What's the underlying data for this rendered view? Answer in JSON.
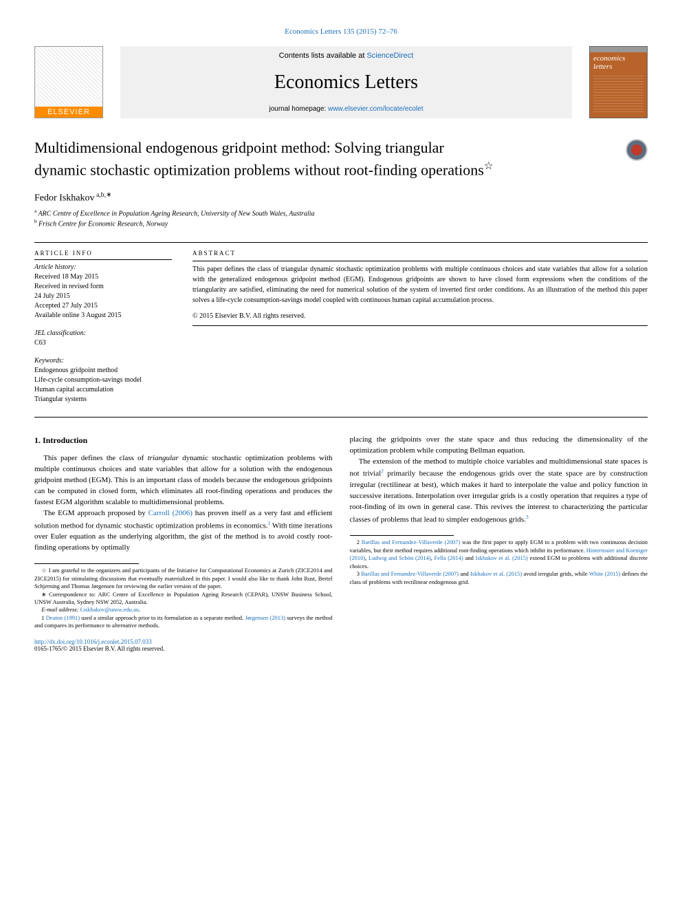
{
  "citation": "Economics Letters 135 (2015) 72–76",
  "banner": {
    "contents_prefix": "Contents lists available at ",
    "contents_link": "ScienceDirect",
    "journal_name": "Economics Letters",
    "homepage_prefix": "journal homepage: ",
    "homepage_link": "www.elsevier.com/locate/ecolet",
    "elsevier_text": "ELSEVIER",
    "cover_title": "economics letters"
  },
  "title": {
    "main": "Multidimensional endogenous gridpoint method: Solving triangular",
    "sub_prefix": "dynamic stochastic optimization problems without root-finding operations",
    "sup": "☆"
  },
  "authors": "Fedor Iskhakov",
  "affiliations": {
    "a": "ARC Centre of Excellence in Population Ageing Research, University of New South Wales, Australia",
    "b": "Frisch Centre for Economic Research, Norway"
  },
  "article_info": {
    "heading": "ARTICLE INFO",
    "history_label": "Article history:",
    "received": "Received 18 May 2015",
    "received_revised": "Received in revised form",
    "revised_date": "24 July 2015",
    "accepted": "Accepted 27 July 2015",
    "available": "Available online 3 August 2015",
    "jel_label": "JEL classification:",
    "jel_codes": "C63",
    "keywords_label": "Keywords:",
    "kw1": "Endogenous gridpoint method",
    "kw2": "Life-cycle consumption-savings model",
    "kw3": "Human capital accumulation",
    "kw4": "Triangular systems"
  },
  "abstract": {
    "heading": "ABSTRACT",
    "text": "This paper defines the class of triangular dynamic stochastic optimization problems with multiple continuous choices and state variables that allow for a solution with the generalized endogenous gridpoint method (EGM). Endogenous gridpoints are shown to have closed form expressions when the conditions of the triangularity are satisfied, eliminating the need for numerical solution of the system of inverted first order conditions. As an illustration of the method this paper solves a life-cycle consumption-savings model coupled with continuous human capital accumulation process.",
    "copyright": "© 2015 Elsevier B.V. All rights reserved."
  },
  "body": {
    "section_heading": "1. Introduction",
    "left": {
      "p1_a": "This paper defines the class of ",
      "p1_i": "triangular",
      "p1_b": " dynamic stochastic optimization problems with multiple continuous choices and state variables that allow for a solution with the endogenous gridpoint method (EGM). This is an important class of models because the endogenous gridpoints can be computed in closed form, which eliminates all root-finding operations and produces the fastest EGM algorithm scalable to multidimensional problems.",
      "p2_a": "The EGM approach proposed by ",
      "p2_ref1": "Carroll (2006)",
      "p2_b": " has proven itself as a very fast and efficient solution method for dynamic stochastic optimization problems in economics.",
      "p2_fn1": "1",
      "p2_c": " With time iterations over Euler equation as the underlying algorithm, the gist of the method is to avoid costly root-finding operations by optimally"
    },
    "right": {
      "p1": "placing the gridpoints over the state space and thus reducing the dimensionality of the optimization problem while computing Bellman equation.",
      "p2_a": "The extension of the method to multiple choice variables and multidimensional state spaces is not trivial",
      "p2_fn2": "2",
      "p2_b": " primarily because the endogenous grids over the state space are by construction irregular (rectilinear at best), which makes it hard to interpolate the value and policy function in successive iterations. Interpolation over irregular grids is a costly operation that requires a type of root-finding of its own in general case. This revives the interest to characterizing the particular classes of problems that lead to simpler endogenous grids.",
      "p2_fn3": "3"
    }
  },
  "footnotes": {
    "star_a": "☆ I am grateful to the organizers and participants of the Initiative for Computational Economics at Zurich (ZICE2014 and ZICE2015) for stimulating discussions that eventually materialized in this paper. I would also like to thank John Rust, Bertel Schjerning and Thomas Jørgensen for reviewing the earlier version of the paper.",
    "corr": "∗ Correspondence to: ARC Centre of Excellence in Population Ageing Research (CEPAR), UNSW Business School, UNSW Australia, Sydney NSW 2052, Australia.",
    "email_label": "E-mail address: ",
    "email": "f.iskhakov@unsw.edu.au",
    "email_suffix": ".",
    "fn1_a": "1 ",
    "fn1_ref1": "Deaton (1991)",
    "fn1_b": " used a similar approach prior to its formulation as a separate method. ",
    "fn1_ref2": "Jørgensen (2013)",
    "fn1_c": " surveys the method and compares its performance to alternative methods.",
    "fn2_a": "2 ",
    "fn2_ref1": "Barillas and Fernandez-Villaverde (2007)",
    "fn2_b": " was the first paper to apply EGM to a problem with two continuous decision variables, but their method requires additional root-finding operations which inhibit its performance. ",
    "fn2_ref2": "Hintermaier and Koeniger (2010)",
    "fn2_c": ", ",
    "fn2_ref3": "Ludwig and Schön (2014)",
    "fn2_d": ", ",
    "fn2_ref4": "Fella (2014)",
    "fn2_e": " and ",
    "fn2_ref5": "Iskhakov et al. (2015)",
    "fn2_f": " extend EGM to problems with additional discrete choices.",
    "fn3_a": "3 ",
    "fn3_ref1": "Barillas and Fernandez-Villaverde (2007)",
    "fn3_b": " and ",
    "fn3_ref2": "Iskhakov et al. (2015)",
    "fn3_c": " avoid irregular grids, while ",
    "fn3_ref3": "White (2015)",
    "fn3_d": " defines the class of problems with rectilinear endogenous grid."
  },
  "doi": {
    "link": "http://dx.doi.org/10.1016/j.econlet.2015.07.033",
    "issn": "0165-1765/© 2015 Elsevier B.V. All rights reserved."
  }
}
